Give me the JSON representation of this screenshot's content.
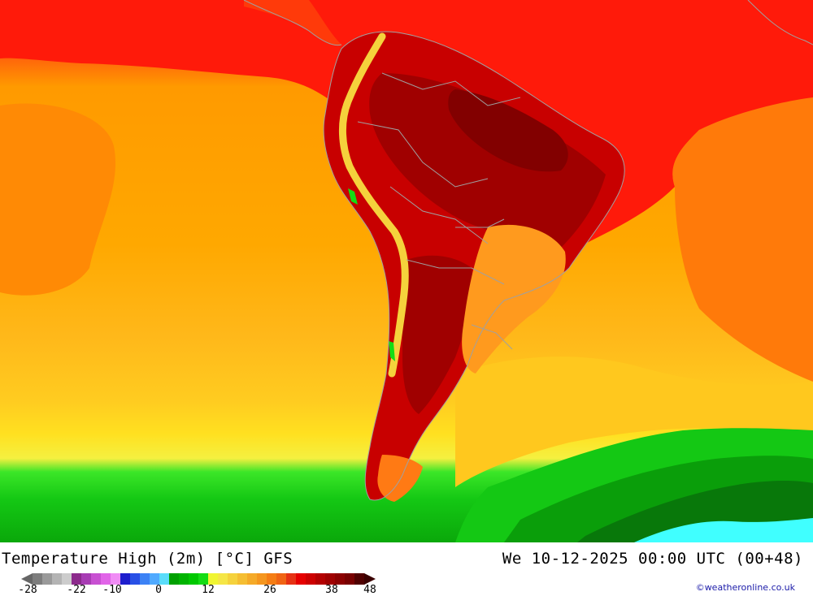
{
  "map": {
    "title": "Temperature High (2m) [°C] GFS",
    "datetime": "We 10-12-2025 00:00 UTC (00+48)",
    "credit": "©weatheronline.co.uk"
  },
  "legend": {
    "ticks": [
      "-28",
      "-22",
      "-10",
      "0",
      "12",
      "26",
      "38",
      "48"
    ],
    "colors": [
      "#7d7d7d",
      "#9a9a9a",
      "#b4b4b4",
      "#cccccc",
      "#8c2a8c",
      "#a83cb4",
      "#c850d2",
      "#e164e8",
      "#f08cf5",
      "#1e1ecd",
      "#2850e6",
      "#3c82f5",
      "#50aaff",
      "#5adcfa",
      "#00a000",
      "#00b400",
      "#00c800",
      "#14dc14",
      "#f0f532",
      "#f5e646",
      "#f5d23c",
      "#f5be32",
      "#f5aa28",
      "#f5961e",
      "#f57d14",
      "#f06414",
      "#e63214",
      "#e60000",
      "#cd0000",
      "#b40000",
      "#a00000",
      "#8c0000",
      "#780000",
      "#500000"
    ]
  },
  "palette": {
    "ocean_north": "#ff1a0a",
    "ocean_orange": "#ffa500",
    "ocean_mid": "#ffb31a",
    "ocean_yellow": "#ffd21e",
    "band_yellow": "#f5f040",
    "green_light": "#3ce628",
    "green": "#14c814",
    "green_dark": "#0a9e0a",
    "green_deep": "#08780a",
    "cyan": "#40ffff",
    "land_hot": "#c80000",
    "land_hotter": "#a00000",
    "land_hottest": "#820000",
    "border": "#a0a0a0"
  }
}
